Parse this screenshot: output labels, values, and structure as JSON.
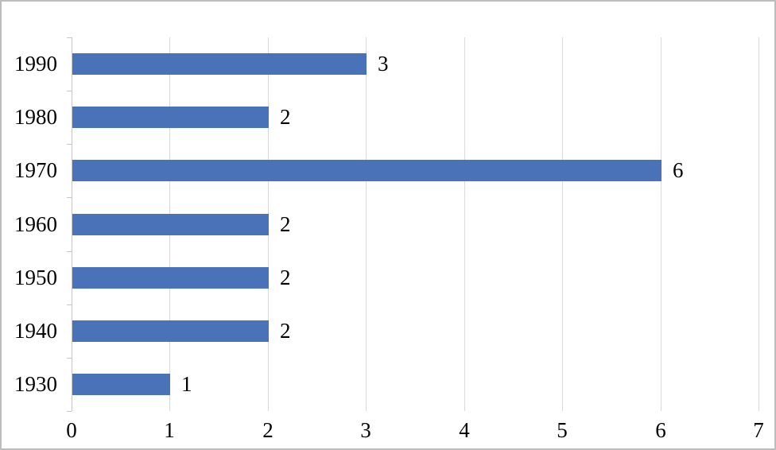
{
  "chart_data": {
    "type": "bar",
    "orientation": "horizontal",
    "title": "",
    "xlabel": "",
    "ylabel": "",
    "categories": [
      "1990",
      "1980",
      "1970",
      "1960",
      "1950",
      "1940",
      "1930"
    ],
    "values": [
      3,
      2,
      6,
      2,
      2,
      2,
      1
    ],
    "data_labels": [
      "3",
      "2",
      "6",
      "2",
      "2",
      "2",
      "1"
    ],
    "x_ticks": [
      "0",
      "1",
      "2",
      "3",
      "4",
      "5",
      "6",
      "7"
    ],
    "xlim": [
      0,
      7
    ],
    "grid": true,
    "legend": false,
    "colors": {
      "bar": "#4A72B8",
      "gridline": "#D9D9D9",
      "axis": "#C6C6C6",
      "text": "#000000",
      "background": "#FFFFFF",
      "frame_border": "#BDBDBD"
    }
  }
}
